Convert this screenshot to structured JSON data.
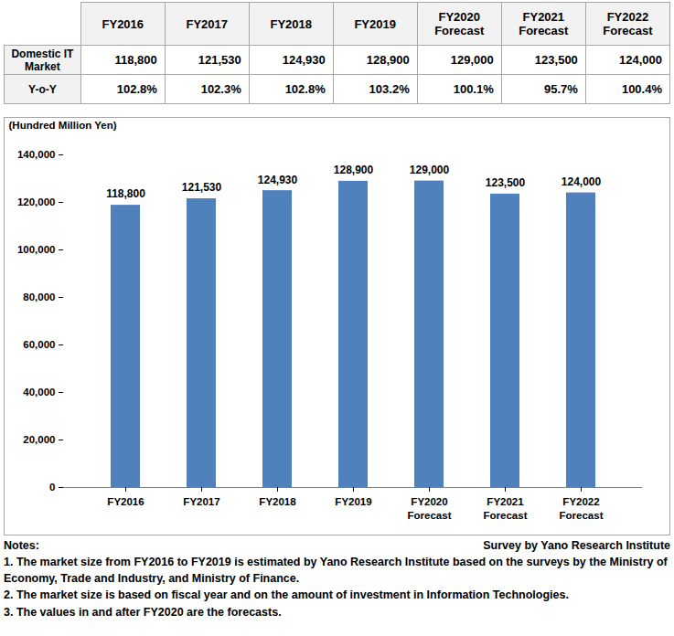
{
  "chart_data": {
    "type": "bar",
    "y_label": "(Hundred Million Yen)",
    "categories": [
      "FY2016",
      "FY2017",
      "FY2018",
      "FY2019",
      "FY2020 Forecast",
      "FY2021 Forecast",
      "FY2022 Forecast"
    ],
    "values": [
      118800,
      121530,
      124930,
      128900,
      129000,
      123500,
      124000
    ],
    "value_labels": [
      "118,800",
      "121,530",
      "124,930",
      "128,900",
      "129,000",
      "123,500",
      "124,000"
    ],
    "color": "#4f81bd",
    "ylim": [
      0,
      140000
    ],
    "yticks": [
      0,
      {
        "value": 20000,
        "label": "20,000"
      },
      {
        "value": 40000,
        "label": "40,000"
      },
      {
        "value": 60000,
        "label": "60,000"
      },
      {
        "value": 80000,
        "label": "80,000"
      },
      {
        "value": 100000,
        "label": "100,000"
      },
      {
        "value": 120000,
        "label": "120,000"
      },
      {
        "value": 140000,
        "label": "140,000"
      }
    ],
    "grid": false,
    "data_labels": true
  },
  "table": {
    "columns": [
      "FY2016",
      "FY2017",
      "FY2018",
      "FY2019",
      "FY2020 Forecast",
      "FY2021 Forecast",
      "FY2022 Forecast"
    ],
    "rows": [
      {
        "label": "Domestic IT Market",
        "cells": [
          "118,800",
          "121,530",
          "124,930",
          "128,900",
          "129,000",
          "123,500",
          "124,000"
        ]
      },
      {
        "label": "Y-o-Y",
        "cells": [
          "102.8%",
          "102.3%",
          "102.8%",
          "103.2%",
          "100.1%",
          "95.7%",
          "100.4%"
        ]
      }
    ]
  },
  "notes": {
    "heading": "Notes:",
    "source": "Survey by Yano Research Institute",
    "items": [
      "1. The market size from FY2016 to FY2019 is estimated by Yano Research Institute based on the surveys by the Ministry of Economy, Trade and Industry, and Ministry of Finance.",
      "2. The market size is based on fiscal year and on the amount of investment in Information Technologies.",
      "3. The values in and after FY2020 are the forecasts."
    ]
  }
}
